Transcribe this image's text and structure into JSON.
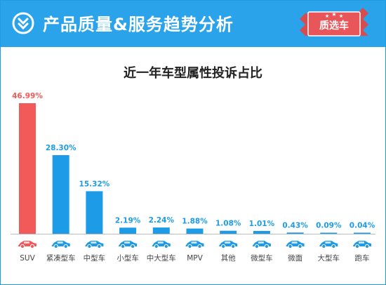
{
  "header": {
    "title": "产品质量&服务趋势分析",
    "badge": "质选车",
    "logo_icon": "brand-logo-icon",
    "bg_color": "#2aa3ea",
    "badge_color": "#e8565a"
  },
  "chart_data": {
    "type": "bar",
    "title": "近一年车型属性投诉占比",
    "categories": [
      "SUV",
      "紧凑型车",
      "中型车",
      "小型车",
      "中大型车",
      "MPV",
      "其他",
      "微型车",
      "微面",
      "大型车",
      "跑车"
    ],
    "values": [
      46.99,
      28.3,
      15.32,
      2.19,
      2.24,
      1.88,
      1.08,
      1.01,
      0.43,
      0.09,
      0.04
    ],
    "value_labels": [
      "46.99%",
      "28.30%",
      "15.32%",
      "2.19%",
      "2.24%",
      "1.88%",
      "1.08%",
      "1.01%",
      "0.43%",
      "0.09%",
      "0.04%"
    ],
    "unit": "%",
    "icons": [
      "suv-car-icon",
      "compact-car-icon",
      "midsize-car-icon",
      "small-car-icon",
      "large-midsize-car-icon",
      "mpv-icon",
      "pickup-truck-icon",
      "micro-car-icon",
      "minivan-icon",
      "large-car-icon",
      "sports-car-icon"
    ],
    "colors": {
      "highlight": "#f25a5a",
      "bar": "#1e9be6",
      "axis": "#bbbbbb"
    },
    "highlight_index": 0,
    "xlabel": "",
    "ylabel": "",
    "ylim": [
      0,
      47
    ],
    "grid": false,
    "legend": "none"
  }
}
